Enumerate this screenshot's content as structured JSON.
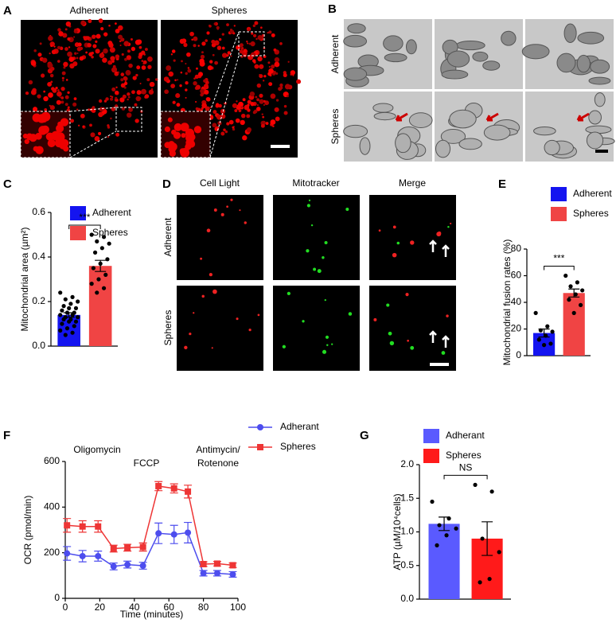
{
  "figure": {
    "panels": [
      "A",
      "B",
      "C",
      "D",
      "E",
      "F",
      "G"
    ],
    "A": {
      "labels": [
        "Adherent",
        "Spheres"
      ]
    },
    "B": {
      "rows": [
        "Adherent",
        "Spheres"
      ]
    },
    "D": {
      "columns": [
        "Cell Light",
        "Mitotracker",
        "Merge"
      ],
      "rows": [
        "Adherent",
        "Spheres"
      ]
    }
  },
  "chart_data": [
    {
      "type": "bar",
      "ylabel": "Mitochondrial area (µm²)",
      "ylim": [
        0,
        0.6
      ],
      "yticks": [
        {
          "value": 0,
          "label": "0.0"
        },
        0.2,
        0.4,
        0.6
      ],
      "significance": "***",
      "series": [
        {
          "name": "Adherent",
          "color": "#1414f0",
          "values": [
            0.14
          ],
          "errors": [
            0.01
          ],
          "points": [
            0.24,
            0.22,
            0.21,
            0.2,
            0.19,
            0.18,
            0.17,
            0.17,
            0.16,
            0.15,
            0.15,
            0.14,
            0.14,
            0.13,
            0.13,
            0.12,
            0.12,
            0.11,
            0.11,
            0.1,
            0.09,
            0.08,
            0.07,
            0.06,
            0.05
          ]
        },
        {
          "name": "Spheres",
          "color": "#f04444",
          "values": [
            0.36
          ],
          "errors": [
            0.025
          ],
          "points": [
            0.5,
            0.49,
            0.47,
            0.46,
            0.44,
            0.42,
            0.39,
            0.37,
            0.35,
            0.32,
            0.3,
            0.28,
            0.26,
            0.24
          ]
        }
      ]
    },
    {
      "type": "bar",
      "ylabel": "Mitochondrial fusion rates (%)",
      "ylim": [
        0,
        80
      ],
      "yticks": [
        0,
        20,
        40,
        60,
        80
      ],
      "significance": "***",
      "series": [
        {
          "name": "Adherent",
          "color": "#1414f0",
          "values": [
            17
          ],
          "errors": [
            3
          ],
          "points": [
            32,
            22,
            19,
            18,
            15,
            12,
            9,
            8
          ]
        },
        {
          "name": "Spheres",
          "color": "#f04444",
          "values": [
            47
          ],
          "errors": [
            3
          ],
          "points": [
            60,
            55,
            52,
            49,
            46,
            42,
            38,
            32
          ]
        }
      ]
    },
    {
      "type": "line",
      "xlabel": "Time (minutes)",
      "ylabel": "OCR (pmol/min)",
      "xlim": [
        0,
        100
      ],
      "xticks": [
        0,
        20,
        40,
        60,
        80,
        100
      ],
      "ylim": [
        0,
        600
      ],
      "yticks": [
        0,
        200,
        400,
        600
      ],
      "annotations": [
        "Oligomycin",
        "FCCP",
        "Antimycin/",
        "Rotenone"
      ],
      "x": [
        1,
        10,
        19,
        28,
        36,
        45,
        54,
        63,
        71,
        80,
        88,
        97
      ],
      "series": [
        {
          "name": "Adherant",
          "color": "#4d4dee",
          "marker": "circle",
          "values": [
            197,
            185,
            185,
            140,
            148,
            143,
            285,
            280,
            288,
            110,
            110,
            105
          ],
          "errors": [
            30,
            25,
            22,
            15,
            15,
            15,
            45,
            40,
            45,
            12,
            12,
            12
          ]
        },
        {
          "name": "Spheres",
          "color": "#ee3535",
          "marker": "square",
          "values": [
            320,
            315,
            315,
            218,
            222,
            225,
            492,
            482,
            468,
            150,
            152,
            145
          ],
          "errors": [
            30,
            25,
            25,
            15,
            15,
            18,
            20,
            20,
            28,
            10,
            10,
            10
          ]
        }
      ]
    },
    {
      "type": "bar",
      "ylabel": "ATP (µM/10⁴cells)",
      "ylim": [
        0,
        2
      ],
      "yticks": [
        {
          "value": 0,
          "label": "0.0"
        },
        0.5,
        {
          "value": 1,
          "label": "1.0"
        },
        1.5,
        {
          "value": 2,
          "label": "2.0"
        }
      ],
      "significance": "NS",
      "series": [
        {
          "name": "Adherant",
          "color": "#5a5aff",
          "values": [
            1.12
          ],
          "errors": [
            0.1
          ],
          "points": [
            1.45,
            1.2,
            1.1,
            1.05,
            0.95,
            0.8
          ]
        },
        {
          "name": "Spheres",
          "color": "#ff1a1a",
          "values": [
            0.9
          ],
          "errors": [
            0.25
          ],
          "points": [
            1.7,
            1.6,
            0.9,
            0.7,
            0.3,
            0.25
          ]
        }
      ]
    }
  ]
}
